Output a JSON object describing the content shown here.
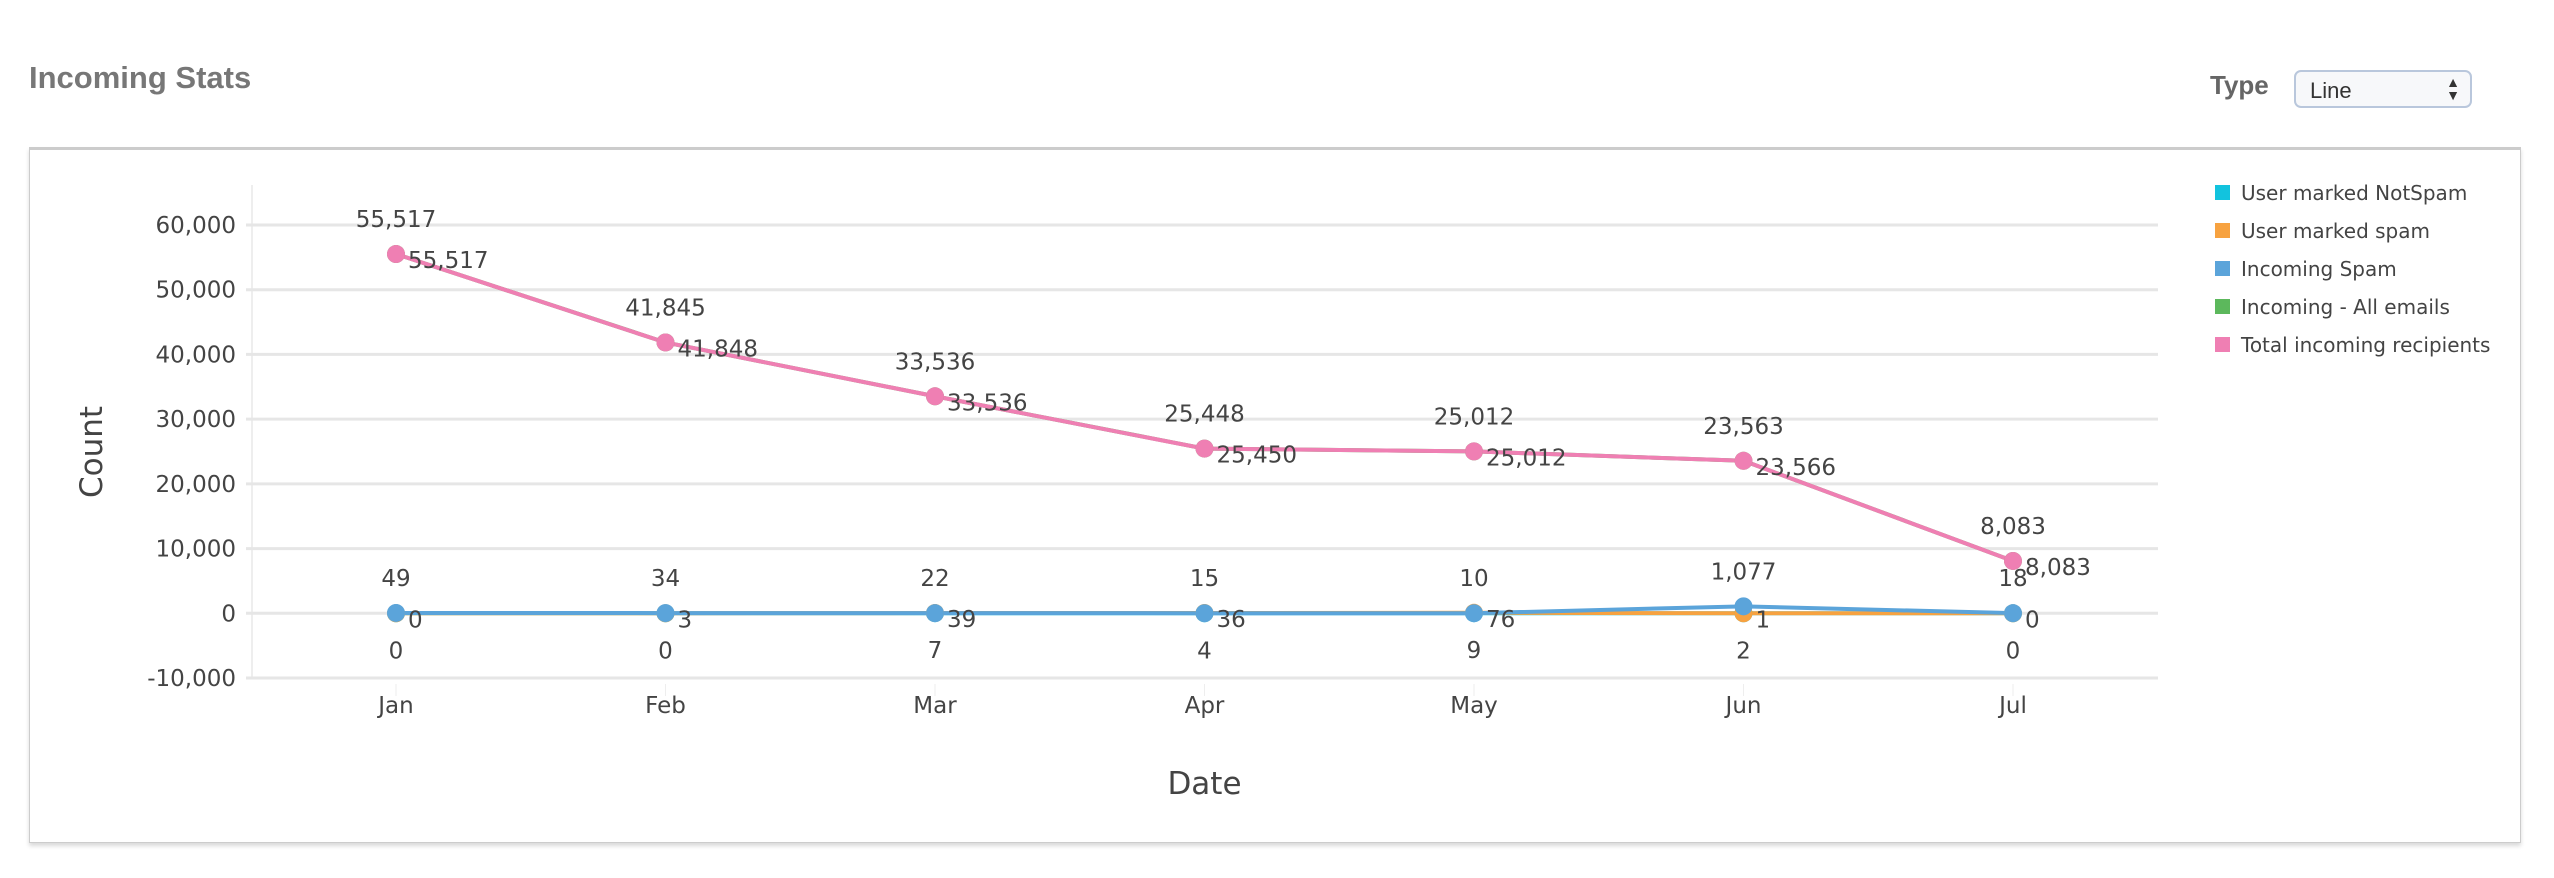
{
  "header": {
    "title": "Incoming Stats",
    "type_label": "Type",
    "type_value": "Line"
  },
  "chart_data": {
    "type": "line",
    "title": "Incoming Stats",
    "xlabel": "Date",
    "ylabel": "Count",
    "categories": [
      "Jan",
      "Feb",
      "Mar",
      "Apr",
      "May",
      "Jun",
      "Jul"
    ],
    "ylim": [
      -10000,
      60000
    ],
    "yticks": [
      -10000,
      0,
      10000,
      20000,
      30000,
      40000,
      50000,
      60000
    ],
    "ytick_labels": [
      "-10,000",
      "0",
      "10,000",
      "20,000",
      "30,000",
      "40,000",
      "50,000",
      "60,000"
    ],
    "grid": true,
    "legend_position": "right",
    "series": [
      {
        "name": "User marked NotSpam",
        "color": "#12c3de",
        "label_pos": "below",
        "values": [
          0,
          0,
          7,
          4,
          9,
          2,
          0
        ]
      },
      {
        "name": "User marked spam",
        "color": "#f7a240",
        "label_pos": "right",
        "values": [
          0,
          3,
          39,
          36,
          76,
          1,
          0
        ]
      },
      {
        "name": "Incoming Spam",
        "color": "#5ba4da",
        "label_pos": "above",
        "values": [
          49,
          34,
          22,
          15,
          10,
          1077,
          18
        ]
      },
      {
        "name": "Incoming - All emails",
        "color": "#5cb85c",
        "label_pos": "right",
        "values": [
          55517,
          41848,
          33536,
          25450,
          25012,
          23566,
          8083
        ]
      },
      {
        "name": "Total incoming recipients",
        "color": "#ef7fb3",
        "label_pos": "above",
        "values": [
          55517,
          41845,
          33536,
          25448,
          25012,
          23563,
          8083
        ]
      }
    ]
  }
}
